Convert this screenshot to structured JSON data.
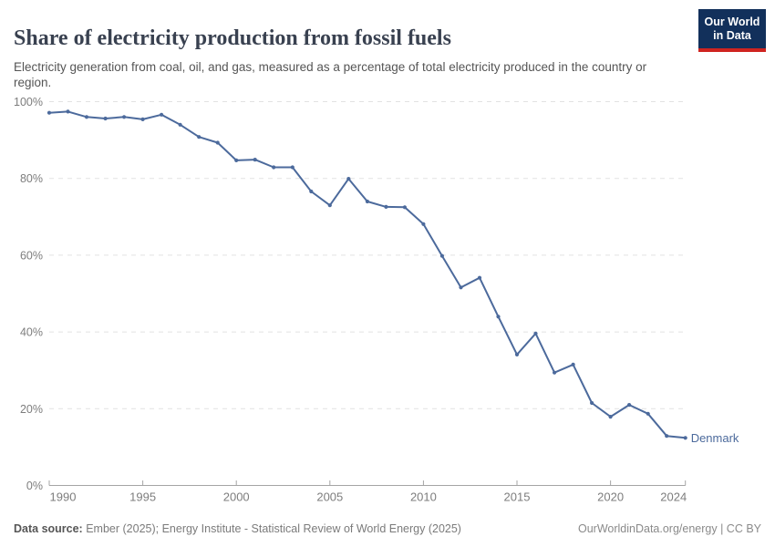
{
  "header": {
    "title": "Share of electricity production from fossil fuels",
    "subtitle": "Electricity generation from coal, oil, and gas, measured as a percentage of total electricity produced in the country or region."
  },
  "logo": {
    "line1": "Our World",
    "line2": "in Data",
    "bg_color": "#12305b",
    "bar_color": "#cf2420"
  },
  "chart_data": {
    "type": "line",
    "title": "Share of electricity production from fossil fuels",
    "xlabel": "",
    "ylabel": "",
    "x": [
      1990,
      1991,
      1992,
      1993,
      1994,
      1995,
      1996,
      1997,
      1998,
      1999,
      2000,
      2001,
      2002,
      2003,
      2004,
      2005,
      2006,
      2007,
      2008,
      2009,
      2010,
      2011,
      2012,
      2013,
      2014,
      2015,
      2016,
      2017,
      2018,
      2019,
      2020,
      2021,
      2022,
      2023,
      2024
    ],
    "series": [
      {
        "name": "Denmark",
        "color": "#4c6a9c",
        "values": [
          97.1,
          97.4,
          96.0,
          95.6,
          96.0,
          95.4,
          96.6,
          94.0,
          90.8,
          89.3,
          84.7,
          84.9,
          82.9,
          82.9,
          76.6,
          73.0,
          79.9,
          74.0,
          72.6,
          72.5,
          68.1,
          59.8,
          51.6,
          54.1,
          44.0,
          34.1,
          39.6,
          29.4,
          31.5,
          21.5,
          17.9,
          21.0,
          18.7,
          12.9,
          12.4
        ]
      }
    ],
    "xlim": [
      1990,
      2024
    ],
    "ylim": [
      0,
      100
    ],
    "yticks": [
      {
        "value": 0,
        "label": "0%"
      },
      {
        "value": 20,
        "label": "20%"
      },
      {
        "value": 40,
        "label": "40%"
      },
      {
        "value": 60,
        "label": "60%"
      },
      {
        "value": 80,
        "label": "80%"
      },
      {
        "value": 100,
        "label": "100%"
      }
    ],
    "xticks": [
      {
        "value": 1990,
        "label": "1990"
      },
      {
        "value": 1995,
        "label": "1995"
      },
      {
        "value": 2000,
        "label": "2000"
      },
      {
        "value": 2005,
        "label": "2005"
      },
      {
        "value": 2010,
        "label": "2010"
      },
      {
        "value": 2015,
        "label": "2015"
      },
      {
        "value": 2020,
        "label": "2020"
      },
      {
        "value": 2024,
        "label": "2024"
      }
    ],
    "grid": "horizontal-dashed",
    "legend_position": "end-of-line",
    "colors": {
      "line": "#4c6a9c",
      "grid": "#e2e2e2",
      "axis": "#a5a5a5",
      "tick_label": "#7d7d7d"
    }
  },
  "footer": {
    "source_label": "Data source:",
    "source_text": " Ember (2025); Energy Institute - Statistical Review of World Energy (2025)",
    "credit": "OurWorldinData.org/energy | CC BY"
  }
}
